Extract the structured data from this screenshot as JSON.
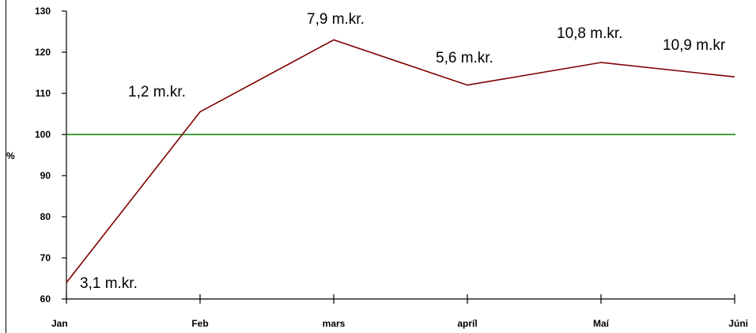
{
  "chart_data": {
    "type": "line",
    "categories": [
      "Jan",
      "Feb",
      "mars",
      "apríl",
      "Maí",
      "Júni"
    ],
    "series": [
      {
        "values": [
          64,
          105.5,
          123,
          112,
          117.5,
          114
        ],
        "data_labels": [
          "3,1 m.kr.",
          "1,2 m.kr.",
          "7,9 m.kr.",
          "5,6 m.kr.",
          "10,8 m.kr.",
          "10,9 m.kr"
        ],
        "color": "#800000"
      }
    ],
    "reference_line": {
      "value": 100,
      "color": "#008000"
    },
    "ylabel": "%",
    "ylim": [
      60,
      130
    ],
    "yticks": [
      60,
      70,
      80,
      90,
      100,
      110,
      120,
      130
    ],
    "grid": false,
    "legend": "none"
  }
}
